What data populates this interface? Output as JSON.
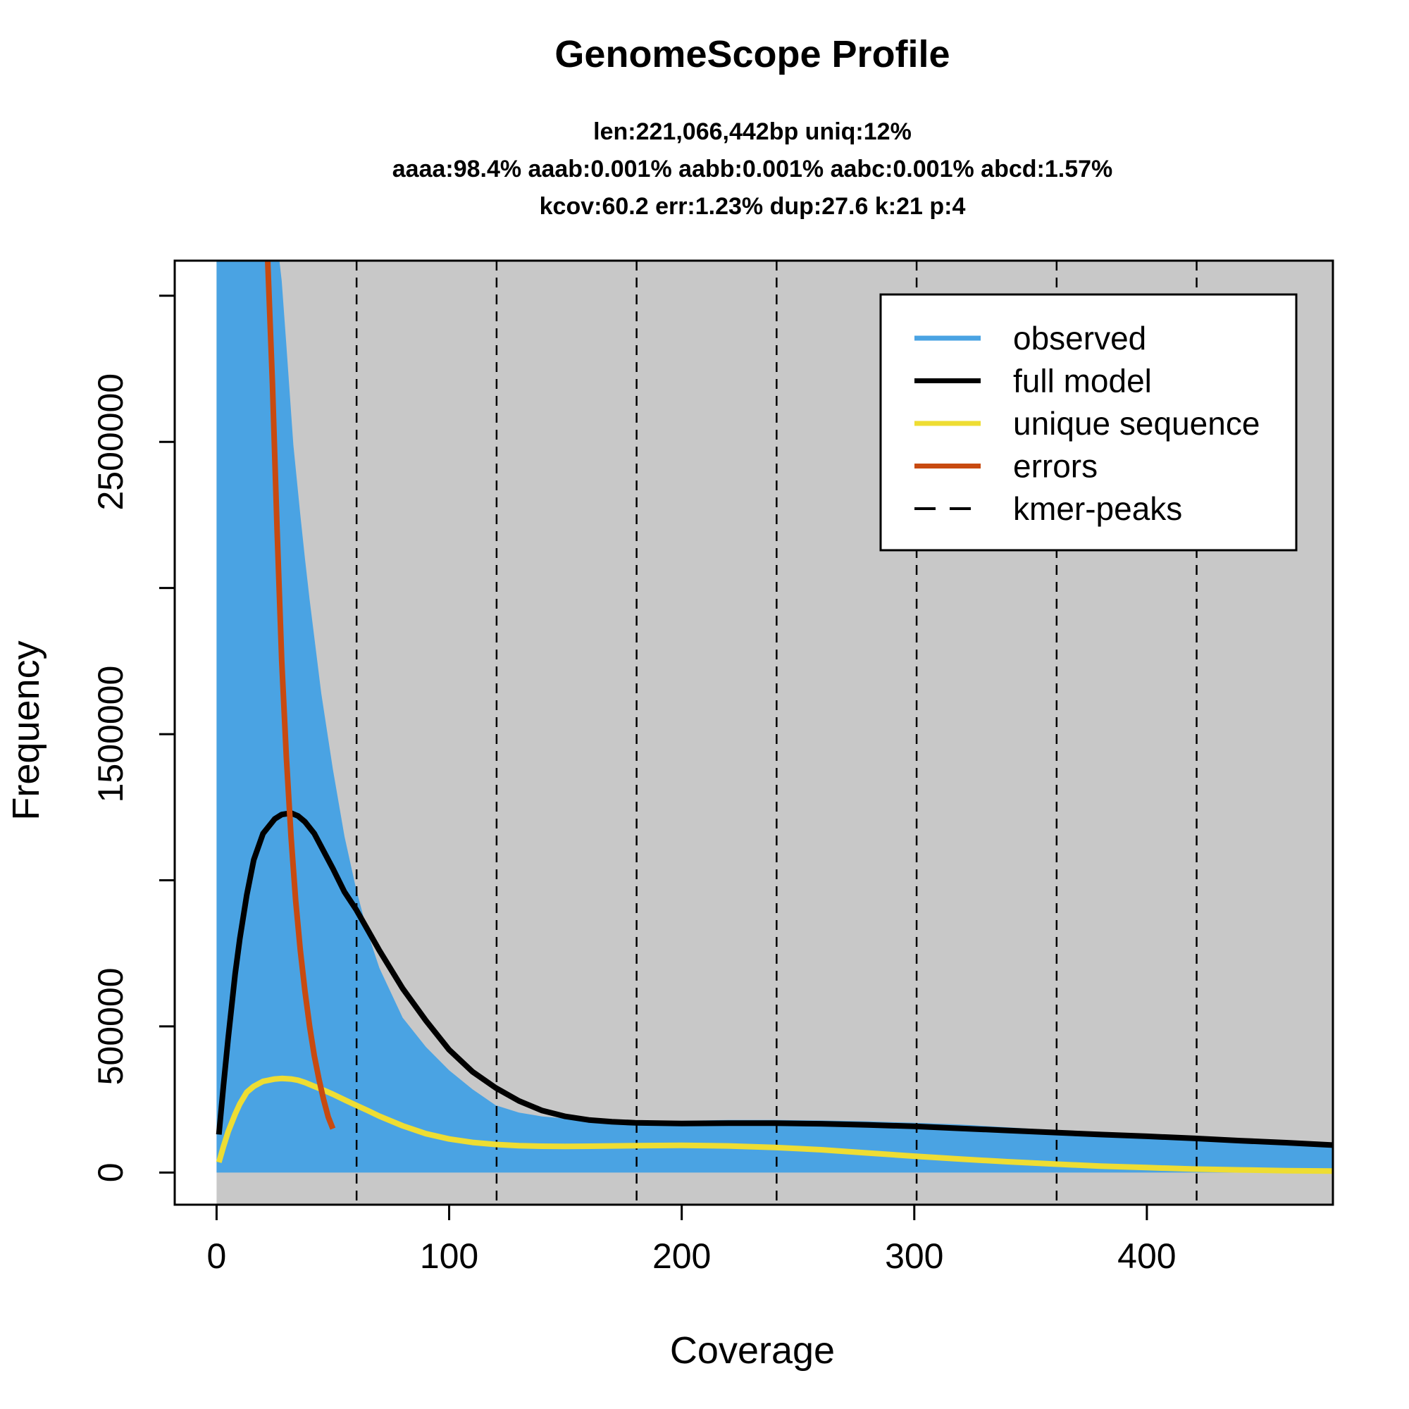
{
  "chart_data": {
    "type": "area",
    "title": "GenomeScope Profile",
    "subtitle_lines": [
      "len:221,066,442bp uniq:12%",
      "aaaa:98.4% aaab:0.001% aabb:0.001% aabc:0.001% abcd:1.57%",
      "kcov:60.2 err:1.23%  dup:27.6  k:21 p:4"
    ],
    "xlabel": "Coverage",
    "ylabel": "Frequency",
    "xlim": [
      -18,
      480
    ],
    "ylim": [
      -110000,
      3120000
    ],
    "x_ticks": [
      0,
      100,
      200,
      300,
      400
    ],
    "y_ticks": [
      0,
      500000,
      1000000,
      1500000,
      2000000,
      2500000,
      3000000
    ],
    "y_tick_labels": [
      "0",
      "500000",
      "",
      "1500000",
      "",
      "2500000",
      ""
    ],
    "grid": false,
    "legend_position": "top-right",
    "legend": [
      {
        "label": "observed",
        "color": "#4aa3e3",
        "style": "solid"
      },
      {
        "label": "full model",
        "color": "#000000",
        "style": "solid"
      },
      {
        "label": "unique sequence",
        "color": "#eedd33",
        "style": "solid"
      },
      {
        "label": "errors",
        "color": "#c84a10",
        "style": "solid"
      },
      {
        "label": "kmer-peaks",
        "color": "#000000",
        "style": "dashed"
      }
    ],
    "colors": {
      "panel_background": "#c8c8c8",
      "observed": "#4aa3e3",
      "full_model": "#000000",
      "unique_sequence": "#eedd33",
      "errors": "#c84a10",
      "kmer_peaks": "#000000"
    },
    "kmer_peaks": [
      60.2,
      120.4,
      180.6,
      240.8,
      301.0,
      361.2,
      421.4
    ],
    "series": [
      {
        "name": "observed",
        "x": [
          0,
          22,
          25,
          27,
          28,
          30,
          33,
          36,
          38,
          40,
          45,
          50,
          55,
          60,
          65,
          70,
          80,
          90,
          100,
          110,
          120,
          130,
          140,
          150,
          160,
          170,
          180,
          200,
          220,
          240,
          260,
          280,
          300,
          320,
          340,
          360,
          380,
          400,
          420,
          440,
          460,
          480
        ],
        "y": [
          3120000,
          3120000,
          3120000,
          3120000,
          3050000,
          2830000,
          2490000,
          2250000,
          2100000,
          1960000,
          1640000,
          1380000,
          1150000,
          970000,
          820000,
          700000,
          530000,
          430000,
          350000,
          285000,
          230000,
          205000,
          192000,
          185000,
          180000,
          178000,
          176000,
          177000,
          180000,
          180000,
          178000,
          175000,
          170000,
          164000,
          155000,
          145000,
          134000,
          124000,
          114000,
          104000,
          95000,
          86000
        ]
      },
      {
        "name": "full model",
        "x": [
          1,
          3,
          5,
          8,
          10,
          13,
          16,
          20,
          25,
          28,
          32,
          35,
          38,
          42,
          46,
          50,
          55,
          60,
          65,
          70,
          80,
          90,
          100,
          110,
          120,
          130,
          140,
          150,
          160,
          170,
          180,
          200,
          220,
          240,
          260,
          280,
          300,
          320,
          340,
          360,
          380,
          400,
          420,
          440,
          460,
          480
        ],
        "y": [
          130000,
          300000,
          460000,
          680000,
          800000,
          950000,
          1070000,
          1160000,
          1210000,
          1225000,
          1230000,
          1220000,
          1200000,
          1160000,
          1100000,
          1040000,
          960000,
          900000,
          830000,
          760000,
          630000,
          520000,
          420000,
          345000,
          290000,
          245000,
          212000,
          192000,
          180000,
          174000,
          170000,
          168000,
          169000,
          169000,
          167000,
          163000,
          158000,
          151000,
          144000,
          137000,
          130000,
          124000,
          117000,
          109000,
          102000,
          94000
        ]
      },
      {
        "name": "unique sequence",
        "x": [
          1,
          3,
          5,
          8,
          10,
          13,
          16,
          20,
          25,
          28,
          32,
          35,
          38,
          42,
          46,
          50,
          55,
          60,
          65,
          70,
          80,
          90,
          100,
          110,
          120,
          130,
          140,
          150,
          160,
          170,
          180,
          200,
          220,
          240,
          260,
          280,
          300,
          320,
          340,
          360,
          380,
          400,
          420,
          440,
          460,
          480
        ],
        "y": [
          35000,
          90000,
          140000,
          200000,
          235000,
          275000,
          295000,
          312000,
          320000,
          322000,
          320000,
          316000,
          308000,
          295000,
          282000,
          268000,
          249000,
          230000,
          212000,
          193000,
          160000,
          133000,
          115000,
          103000,
          96000,
          92000,
          90000,
          89500,
          90000,
          91000,
          92000,
          93000,
          91000,
          86000,
          78000,
          67000,
          56000,
          46000,
          37000,
          29000,
          22000,
          17000,
          12000,
          9000,
          6500,
          5000
        ]
      },
      {
        "name": "errors",
        "x": [
          22,
          24,
          26,
          28,
          30,
          32,
          34,
          36,
          38,
          40,
          42,
          44,
          46,
          48,
          50
        ],
        "y": [
          3120000,
          2700000,
          2200000,
          1750000,
          1420000,
          1150000,
          930000,
          760000,
          620000,
          500000,
          400000,
          320000,
          250000,
          190000,
          150000
        ]
      }
    ]
  }
}
